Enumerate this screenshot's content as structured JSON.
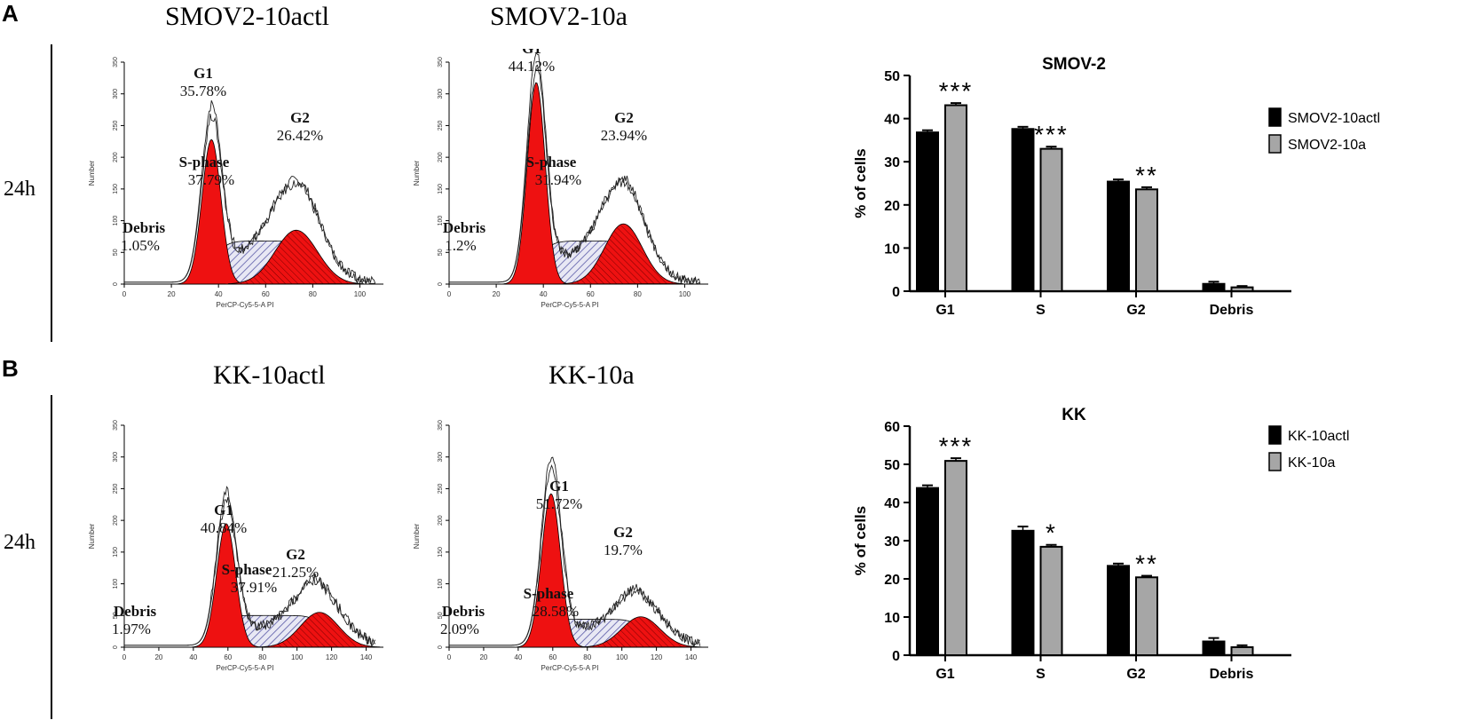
{
  "panels": {
    "A": {
      "letter": "A",
      "row_label": "24h"
    },
    "B": {
      "letter": "B",
      "row_label": "24h"
    }
  },
  "flow": {
    "y_axis_label": "Number",
    "x_axis_label": "PerCP-Cy5-5-A PI",
    "y_ticks": [
      "0",
      "50",
      "100",
      "150",
      "200",
      "250",
      "300",
      "350"
    ],
    "x_ticks_A": [
      "0",
      "20",
      "40",
      "60",
      "80",
      "100"
    ],
    "x_ticks_B": [
      "0",
      "20",
      "40",
      "60",
      "80",
      "100",
      "120",
      "140"
    ],
    "plots": [
      {
        "title": "SMOV2-10actl",
        "g1_label": "G1",
        "g1_pct": "35.78%",
        "g2_label": "G2",
        "g2_pct": "26.42%",
        "s_label": "S-phase",
        "s_pct": "37.79%",
        "debris_label": "Debris",
        "debris_pct": "1.05%"
      },
      {
        "title": "SMOV2-10a",
        "g1_label": "G1",
        "g1_pct": "44.12%",
        "g2_label": "G2",
        "g2_pct": "23.94%",
        "s_label": "S-phase",
        "s_pct": "31.94%",
        "debris_label": "Debris",
        "debris_pct": "1.2%"
      },
      {
        "title": "KK-10actl",
        "g1_label": "G1",
        "g1_pct": "40.84%",
        "g2_label": "G2",
        "g2_pct": "21.25%",
        "s_label": "S-phase",
        "s_pct": "37.91%",
        "debris_label": "Debris",
        "debris_pct": "1.97%"
      },
      {
        "title": "KK-10a",
        "g1_label": "G1",
        "g1_pct": "51.72%",
        "g2_label": "G2",
        "g2_pct": "19.7%",
        "s_label": "S-phase",
        "s_pct": "28.58%",
        "debris_label": "Debris",
        "debris_pct": "2.09%"
      }
    ]
  },
  "colors": {
    "fill_red": "#ee1111",
    "bar_dark": "#000000",
    "bar_light": "#a6a6a6",
    "hatch": "#5a5aa8"
  },
  "chart_data": [
    {
      "type": "bar",
      "title": "SMOV-2",
      "ylabel": "% of cells",
      "xlabel": "",
      "categories": [
        "G1",
        "S",
        "G2",
        "Debris"
      ],
      "ylim": [
        0,
        50
      ],
      "yticks": [
        0,
        10,
        20,
        30,
        40,
        50
      ],
      "series": [
        {
          "name": "SMOV2-10actl",
          "values": [
            36.8,
            37.6,
            25.4,
            1.7
          ],
          "errors": [
            0.5,
            0.5,
            0.5,
            0.5
          ]
        },
        {
          "name": "SMOV2-10a",
          "values": [
            43.1,
            33.0,
            23.6,
            0.9
          ],
          "errors": [
            0.5,
            0.5,
            0.5,
            0.3
          ]
        }
      ],
      "significance": [
        "***",
        "***",
        "**",
        ""
      ],
      "legend_position": "right"
    },
    {
      "type": "bar",
      "title": "KK",
      "ylabel": "% of cells",
      "xlabel": "",
      "categories": [
        "G1",
        "S",
        "G2",
        "Debris"
      ],
      "ylim": [
        0,
        60
      ],
      "yticks": [
        0,
        10,
        20,
        30,
        40,
        50,
        60
      ],
      "series": [
        {
          "name": "KK-10actl",
          "values": [
            43.8,
            32.6,
            23.4,
            3.6
          ],
          "errors": [
            0.7,
            1.1,
            0.6,
            0.9
          ]
        },
        {
          "name": "KK-10a",
          "values": [
            50.9,
            28.4,
            20.4,
            2.1
          ],
          "errors": [
            0.7,
            0.5,
            0.4,
            0.5
          ]
        }
      ],
      "significance": [
        "***",
        "*",
        "**",
        ""
      ],
      "legend_position": "right"
    }
  ]
}
